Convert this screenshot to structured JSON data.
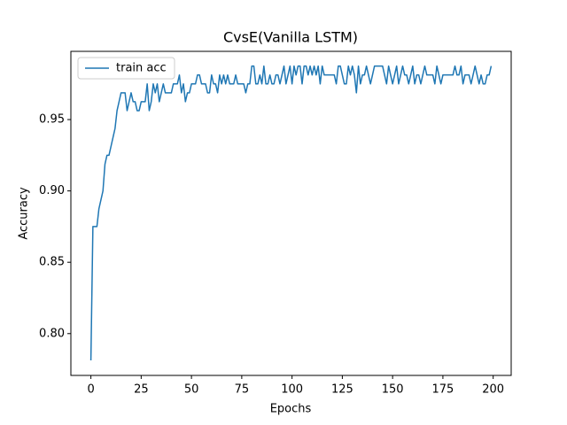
{
  "chart_data": {
    "type": "line",
    "title": "CvsE(Vanilla LSTM)",
    "x_label": "Epochs",
    "y_label": "Accuracy",
    "x": [
      0,
      1,
      2,
      3,
      4,
      5,
      6,
      7,
      8,
      9,
      10,
      11,
      12,
      13,
      14,
      15,
      16,
      17,
      18,
      19,
      20,
      21,
      22,
      23,
      24,
      25,
      26,
      27,
      28,
      29,
      30,
      31,
      32,
      33,
      34,
      35,
      36,
      37,
      38,
      39,
      40,
      41,
      42,
      43,
      44,
      45,
      46,
      47,
      48,
      49,
      50,
      51,
      52,
      53,
      54,
      55,
      56,
      57,
      58,
      59,
      60,
      61,
      62,
      63,
      64,
      65,
      66,
      67,
      68,
      69,
      70,
      71,
      72,
      73,
      74,
      75,
      76,
      77,
      78,
      79,
      80,
      81,
      82,
      83,
      84,
      85,
      86,
      87,
      88,
      89,
      90,
      91,
      92,
      93,
      94,
      95,
      96,
      97,
      98,
      99,
      100,
      101,
      102,
      103,
      104,
      105,
      106,
      107,
      108,
      109,
      110,
      111,
      112,
      113,
      114,
      115,
      116,
      117,
      118,
      119,
      120,
      121,
      122,
      123,
      124,
      125,
      126,
      127,
      128,
      129,
      130,
      131,
      132,
      133,
      134,
      135,
      136,
      137,
      138,
      139,
      140,
      141,
      142,
      143,
      144,
      145,
      146,
      147,
      148,
      149,
      150,
      151,
      152,
      153,
      154,
      155,
      156,
      157,
      158,
      159,
      160,
      161,
      162,
      163,
      164,
      165,
      166,
      167,
      168,
      169,
      170,
      171,
      172,
      173,
      174,
      175,
      176,
      177,
      178,
      179,
      180,
      181,
      182,
      183,
      184,
      185,
      186,
      187,
      188,
      189,
      190,
      191,
      192,
      193,
      194,
      195,
      196,
      197,
      198,
      199
    ],
    "series": [
      {
        "name": "train acc",
        "color": "#1f77b4",
        "values": [
          0.78125,
          0.875,
          0.875,
          0.875,
          0.8875,
          0.89375,
          0.9,
          0.91875,
          0.925,
          0.925,
          0.93125,
          0.9375,
          0.94375,
          0.95625,
          0.9625,
          0.96875,
          0.96875,
          0.96875,
          0.95625,
          0.9625,
          0.96875,
          0.9625,
          0.9625,
          0.95625,
          0.95625,
          0.9625,
          0.9625,
          0.9625,
          0.975,
          0.95625,
          0.9625,
          0.975,
          0.96875,
          0.975,
          0.9625,
          0.96875,
          0.975,
          0.96875,
          0.96875,
          0.96875,
          0.96875,
          0.975,
          0.975,
          0.975,
          0.98125,
          0.96875,
          0.975,
          0.9625,
          0.96875,
          0.96875,
          0.975,
          0.975,
          0.975,
          0.98125,
          0.98125,
          0.975,
          0.975,
          0.975,
          0.96875,
          0.96875,
          0.98125,
          0.975,
          0.975,
          0.96875,
          0.98125,
          0.975,
          0.98125,
          0.975,
          0.98125,
          0.975,
          0.975,
          0.975,
          0.98125,
          0.975,
          0.975,
          0.975,
          0.975,
          0.96875,
          0.975,
          0.975,
          0.9875,
          0.9875,
          0.975,
          0.975,
          0.98125,
          0.975,
          0.9875,
          0.975,
          0.975,
          0.98125,
          0.975,
          0.975,
          0.98125,
          0.98125,
          0.975,
          0.98125,
          0.9875,
          0.975,
          0.98125,
          0.9875,
          0.975,
          0.9875,
          0.98125,
          0.9875,
          0.9875,
          0.975,
          0.9875,
          0.9875,
          0.98125,
          0.9875,
          0.98125,
          0.9875,
          0.98125,
          0.9875,
          0.975,
          0.9875,
          0.98125,
          0.98125,
          0.98125,
          0.98125,
          0.98125,
          0.98125,
          0.975,
          0.9875,
          0.9875,
          0.98125,
          0.975,
          0.975,
          0.9875,
          0.98125,
          0.9875,
          0.98125,
          0.96875,
          0.9875,
          0.975,
          0.98125,
          0.98125,
          0.9875,
          0.98125,
          0.975,
          0.98125,
          0.9875,
          0.9875,
          0.9875,
          0.9875,
          0.9875,
          0.98125,
          0.975,
          0.9875,
          0.98125,
          0.975,
          0.98125,
          0.9875,
          0.975,
          0.98125,
          0.9875,
          0.98125,
          0.98125,
          0.975,
          0.98125,
          0.9875,
          0.975,
          0.98125,
          0.98125,
          0.975,
          0.98125,
          0.9875,
          0.98125,
          0.98125,
          0.98125,
          0.98125,
          0.975,
          0.9875,
          0.98125,
          0.975,
          0.98125,
          0.98125,
          0.98125,
          0.98125,
          0.98125,
          0.98125,
          0.9875,
          0.98125,
          0.98125,
          0.9875,
          0.975,
          0.98125,
          0.98125,
          0.98125,
          0.975,
          0.98125,
          0.9875,
          0.98125,
          0.975,
          0.98125,
          0.975,
          0.975,
          0.98125,
          0.98125,
          0.9875
        ]
      }
    ],
    "xlim": [
      -9.95,
      208.95
    ],
    "xticks": [
      0,
      25,
      50,
      75,
      100,
      125,
      150,
      175,
      200
    ],
    "ylim": [
      0.7707,
      0.9978
    ],
    "yticks": [
      {
        "value": 0.8,
        "label": "0.80"
      },
      0.85,
      {
        "value": 0.9,
        "label": "0.90"
      },
      0.95
    ],
    "legend": "upper left"
  }
}
